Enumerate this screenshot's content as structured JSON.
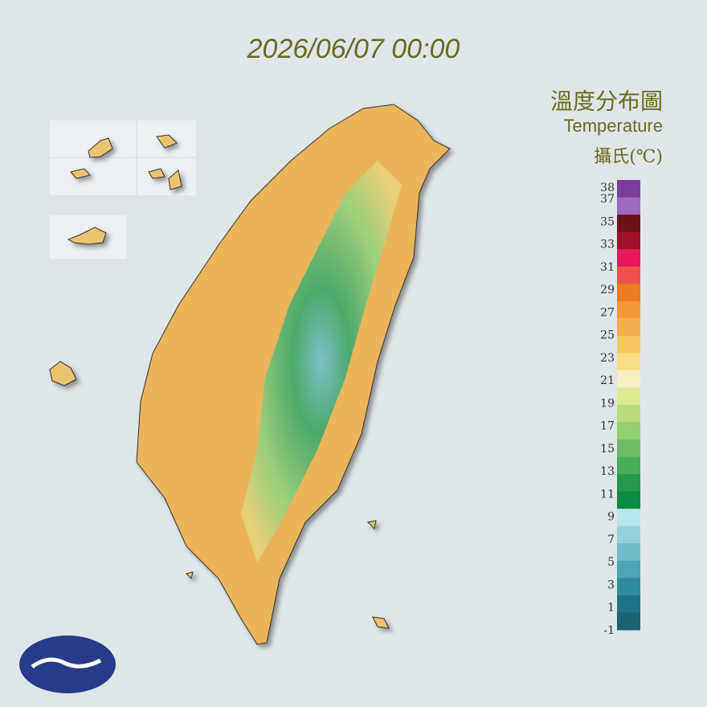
{
  "header": {
    "timestamp": "2026/06/07 00:00",
    "title": "溫度分布圖",
    "subtitle": "Temperature",
    "unit": "攝氏(℃)"
  },
  "legend": {
    "labels": [
      38,
      37,
      35,
      33,
      31,
      29,
      27,
      25,
      23,
      21,
      19,
      17,
      15,
      13,
      11,
      9,
      7,
      5,
      3,
      1,
      -1
    ],
    "colors": [
      "#7a3d9a",
      "#9b6bbd",
      "#6b0f1a",
      "#a0102a",
      "#e8195a",
      "#f0504a",
      "#ee7a22",
      "#f29a3a",
      "#f4b050",
      "#f6c660",
      "#f9dc88",
      "#f7f2c4",
      "#dcea90",
      "#b9dd7a",
      "#92cf6e",
      "#6bbf62",
      "#47ac58",
      "#24984e",
      "#0e8a45",
      "#b7e6ec",
      "#93d2dc",
      "#6ebcc9",
      "#4ca4b5",
      "#2e8c9f",
      "#1d7385",
      "#1a6473"
    ]
  }
}
